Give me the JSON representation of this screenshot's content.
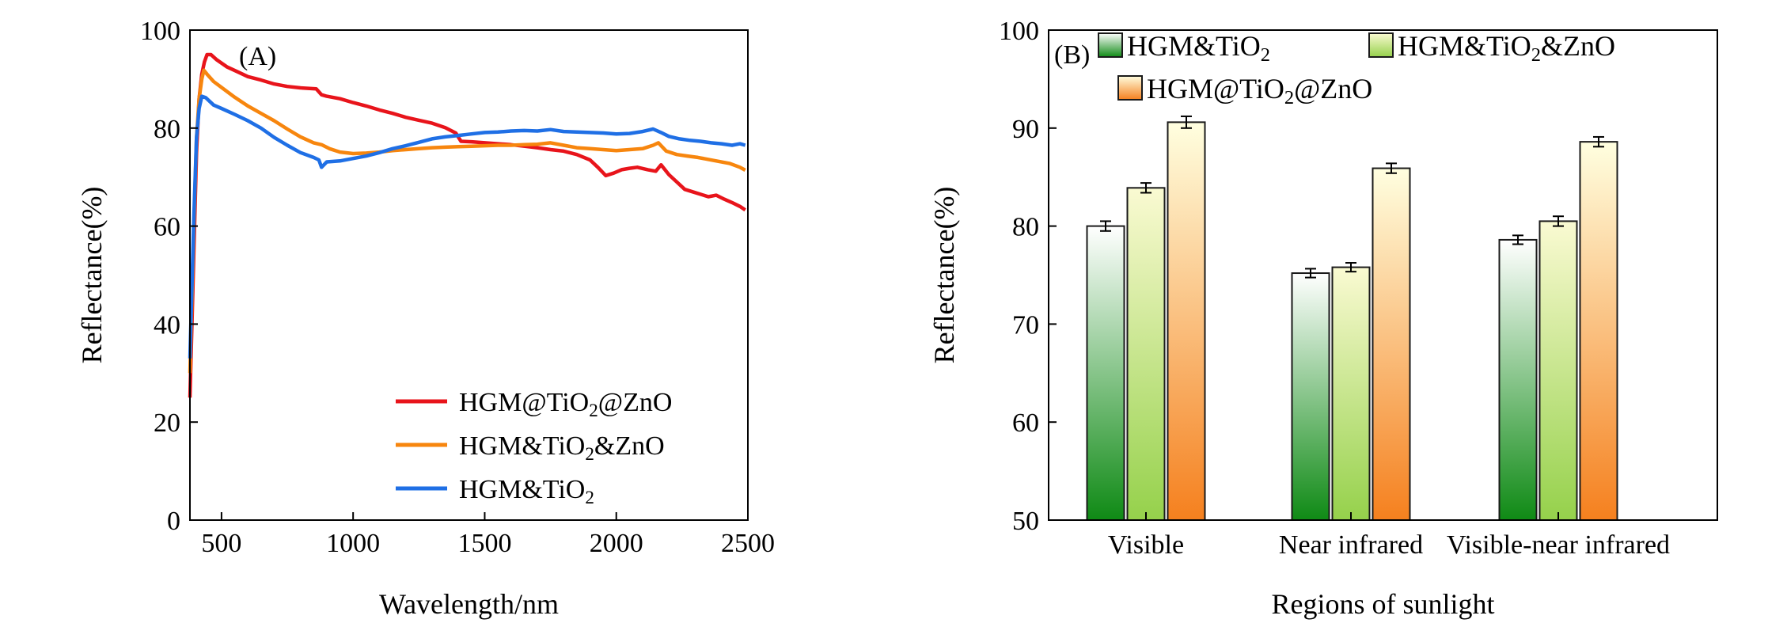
{
  "chart_data": [
    {
      "panel": "(A)",
      "type": "line",
      "xlabel": "Wavelength/nm",
      "ylabel": "Reflectance(%)",
      "xlim": [
        380,
        2500
      ],
      "ylim": [
        0,
        100
      ],
      "xticks": [
        500,
        1000,
        1500,
        2000,
        2500
      ],
      "yticks": [
        0,
        20,
        40,
        60,
        80,
        100
      ],
      "legend_position": "bottom-right",
      "series": [
        {
          "name": "HGM@TiO₂@ZnO",
          "label_parts": [
            [
              "HGM@TiO",
              false
            ],
            [
              "2",
              true
            ],
            [
              "@ZnO",
              false
            ]
          ],
          "color": "#e8141b",
          "points": [
            [
              380,
              25
            ],
            [
              395,
              55
            ],
            [
              405,
              75
            ],
            [
              415,
              86
            ],
            [
              425,
              91
            ],
            [
              435,
              93.5
            ],
            [
              445,
              95
            ],
            [
              460,
              95
            ],
            [
              480,
              94
            ],
            [
              520,
              92.5
            ],
            [
              560,
              91.5
            ],
            [
              600,
              90.5
            ],
            [
              650,
              89.8
            ],
            [
              700,
              89
            ],
            [
              750,
              88.5
            ],
            [
              800,
              88.2
            ],
            [
              860,
              88
            ],
            [
              880,
              86.8
            ],
            [
              900,
              86.5
            ],
            [
              950,
              86
            ],
            [
              1000,
              85.2
            ],
            [
              1050,
              84.5
            ],
            [
              1100,
              83.7
            ],
            [
              1150,
              83
            ],
            [
              1200,
              82.2
            ],
            [
              1250,
              81.6
            ],
            [
              1300,
              81
            ],
            [
              1350,
              80.1
            ],
            [
              1390,
              79
            ],
            [
              1410,
              77.3
            ],
            [
              1450,
              77.2
            ],
            [
              1500,
              77
            ],
            [
              1550,
              76.8
            ],
            [
              1600,
              76.6
            ],
            [
              1650,
              76.3
            ],
            [
              1700,
              76
            ],
            [
              1750,
              75.6
            ],
            [
              1800,
              75.3
            ],
            [
              1850,
              74.6
            ],
            [
              1900,
              73.5
            ],
            [
              1930,
              72
            ],
            [
              1960,
              70.3
            ],
            [
              1990,
              70.8
            ],
            [
              2020,
              71.5
            ],
            [
              2050,
              71.8
            ],
            [
              2080,
              72
            ],
            [
              2120,
              71.5
            ],
            [
              2150,
              71.2
            ],
            [
              2170,
              72.5
            ],
            [
              2200,
              70.5
            ],
            [
              2230,
              69
            ],
            [
              2260,
              67.5
            ],
            [
              2290,
              67
            ],
            [
              2320,
              66.5
            ],
            [
              2350,
              66
            ],
            [
              2380,
              66.3
            ],
            [
              2410,
              65.5
            ],
            [
              2440,
              64.8
            ],
            [
              2470,
              64
            ],
            [
              2490,
              63.3
            ]
          ]
        },
        {
          "name": "HGM&TiO₂&ZnO",
          "label_parts": [
            [
              "HGM&TiO",
              false
            ],
            [
              "2",
              true
            ],
            [
              "&ZnO",
              false
            ]
          ],
          "color": "#f7860e",
          "points": [
            [
              380,
              30
            ],
            [
              395,
              60
            ],
            [
              405,
              78
            ],
            [
              415,
              86
            ],
            [
              425,
              90
            ],
            [
              433,
              91.8
            ],
            [
              445,
              91
            ],
            [
              470,
              89.5
            ],
            [
              500,
              88.3
            ],
            [
              550,
              86.3
            ],
            [
              600,
              84.5
            ],
            [
              650,
              83
            ],
            [
              700,
              81.5
            ],
            [
              750,
              79.8
            ],
            [
              800,
              78.2
            ],
            [
              850,
              77
            ],
            [
              880,
              76.6
            ],
            [
              910,
              75.8
            ],
            [
              950,
              75.1
            ],
            [
              1000,
              74.8
            ],
            [
              1050,
              74.9
            ],
            [
              1100,
              75.1
            ],
            [
              1150,
              75.4
            ],
            [
              1200,
              75.6
            ],
            [
              1250,
              75.8
            ],
            [
              1300,
              76
            ],
            [
              1350,
              76.1
            ],
            [
              1400,
              76.2
            ],
            [
              1450,
              76.3
            ],
            [
              1500,
              76.4
            ],
            [
              1550,
              76.5
            ],
            [
              1600,
              76.5
            ],
            [
              1650,
              76.6
            ],
            [
              1700,
              76.7
            ],
            [
              1750,
              77
            ],
            [
              1800,
              76.5
            ],
            [
              1850,
              76
            ],
            [
              1900,
              75.8
            ],
            [
              1950,
              75.6
            ],
            [
              2000,
              75.4
            ],
            [
              2050,
              75.6
            ],
            [
              2100,
              75.8
            ],
            [
              2140,
              76.5
            ],
            [
              2160,
              77
            ],
            [
              2190,
              75.3
            ],
            [
              2230,
              74.6
            ],
            [
              2270,
              74.3
            ],
            [
              2310,
              74
            ],
            [
              2350,
              73.6
            ],
            [
              2390,
              73.2
            ],
            [
              2430,
              72.8
            ],
            [
              2470,
              72
            ],
            [
              2490,
              71.4
            ]
          ]
        },
        {
          "name": "HGM&TiO₂",
          "label_parts": [
            [
              "HGM&TiO",
              false
            ],
            [
              "2",
              true
            ]
          ],
          "color": "#1f6fe5",
          "points": [
            [
              380,
              33
            ],
            [
              395,
              62
            ],
            [
              405,
              78
            ],
            [
              415,
              84
            ],
            [
              425,
              86.5
            ],
            [
              440,
              86.2
            ],
            [
              470,
              84.7
            ],
            [
              500,
              84
            ],
            [
              550,
              82.8
            ],
            [
              600,
              81.5
            ],
            [
              650,
              80
            ],
            [
              700,
              78.1
            ],
            [
              750,
              76.5
            ],
            [
              800,
              75
            ],
            [
              850,
              74
            ],
            [
              870,
              73.5
            ],
            [
              880,
              72
            ],
            [
              900,
              73.1
            ],
            [
              950,
              73.3
            ],
            [
              1000,
              73.8
            ],
            [
              1050,
              74.3
            ],
            [
              1100,
              75
            ],
            [
              1150,
              75.8
            ],
            [
              1200,
              76.4
            ],
            [
              1250,
              77.1
            ],
            [
              1300,
              77.8
            ],
            [
              1350,
              78.2
            ],
            [
              1400,
              78.5
            ],
            [
              1450,
              78.8
            ],
            [
              1500,
              79.1
            ],
            [
              1550,
              79.2
            ],
            [
              1600,
              79.4
            ],
            [
              1650,
              79.5
            ],
            [
              1700,
              79.4
            ],
            [
              1750,
              79.7
            ],
            [
              1800,
              79.3
            ],
            [
              1850,
              79.2
            ],
            [
              1900,
              79.1
            ],
            [
              1950,
              79
            ],
            [
              2000,
              78.8
            ],
            [
              2050,
              78.9
            ],
            [
              2100,
              79.3
            ],
            [
              2140,
              79.8
            ],
            [
              2170,
              79.1
            ],
            [
              2200,
              78.3
            ],
            [
              2240,
              77.8
            ],
            [
              2280,
              77.5
            ],
            [
              2320,
              77.3
            ],
            [
              2360,
              77
            ],
            [
              2400,
              76.8
            ],
            [
              2440,
              76.5
            ],
            [
              2470,
              76.8
            ],
            [
              2490,
              76.5
            ]
          ]
        }
      ]
    },
    {
      "panel": "(B)",
      "type": "bar",
      "xlabel": "Regions of sunlight",
      "ylabel": "Reflectance(%)",
      "ylim": [
        50,
        100
      ],
      "yticks": [
        50,
        60,
        70,
        80,
        90,
        100
      ],
      "categories": [
        "Visible",
        "Near infrared",
        "Visible-near infrared"
      ],
      "legend_position": "top-left",
      "series": [
        {
          "name": "HGM&TiO₂",
          "label_parts": [
            [
              "HGM&TiO",
              false
            ],
            [
              "2",
              true
            ]
          ],
          "gradient": [
            "#ffffff",
            "#0f8a15"
          ],
          "values": [
            80.0,
            75.2,
            78.6
          ],
          "errors": [
            0.5,
            0.45,
            0.45
          ]
        },
        {
          "name": "HGM&TiO₂&ZnO",
          "label_parts": [
            [
              "HGM&TiO",
              false
            ],
            [
              "2",
              true
            ],
            [
              "&ZnO",
              false
            ]
          ],
          "gradient": [
            "#fafad2",
            "#95d14b"
          ],
          "values": [
            83.9,
            75.8,
            80.5
          ],
          "errors": [
            0.5,
            0.45,
            0.5
          ]
        },
        {
          "name": "HGM@TiO₂@ZnO",
          "label_parts": [
            [
              "HGM@TiO",
              false
            ],
            [
              "2",
              true
            ],
            [
              "@ZnO",
              false
            ]
          ],
          "gradient": [
            "#ffffe0",
            "#f5801e"
          ],
          "values": [
            90.6,
            85.9,
            88.6
          ],
          "errors": [
            0.6,
            0.5,
            0.5
          ]
        }
      ]
    }
  ]
}
